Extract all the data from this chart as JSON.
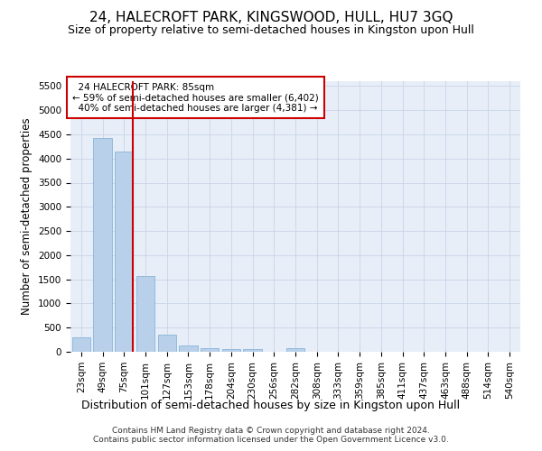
{
  "title": "24, HALECROFT PARK, KINGSWOOD, HULL, HU7 3GQ",
  "subtitle": "Size of property relative to semi-detached houses in Kingston upon Hull",
  "xlabel": "Distribution of semi-detached houses by size in Kingston upon Hull",
  "ylabel": "Number of semi-detached properties",
  "footer_line1": "Contains HM Land Registry data © Crown copyright and database right 2024.",
  "footer_line2": "Contains public sector information licensed under the Open Government Licence v3.0.",
  "categories": [
    "23sqm",
    "49sqm",
    "75sqm",
    "101sqm",
    "127sqm",
    "153sqm",
    "178sqm",
    "204sqm",
    "230sqm",
    "256sqm",
    "282sqm",
    "308sqm",
    "333sqm",
    "359sqm",
    "385sqm",
    "411sqm",
    "437sqm",
    "463sqm",
    "488sqm",
    "514sqm",
    "540sqm"
  ],
  "values": [
    300,
    4430,
    4150,
    1560,
    350,
    140,
    70,
    65,
    65,
    0,
    75,
    0,
    0,
    0,
    0,
    0,
    0,
    0,
    0,
    0,
    0
  ],
  "bar_color": "#b8d0ea",
  "bar_edge_color": "#7aadd4",
  "highlight_bar_index": 2,
  "highlight_color": "#cc0000",
  "ylim": [
    0,
    5600
  ],
  "yticks": [
    0,
    500,
    1000,
    1500,
    2000,
    2500,
    3000,
    3500,
    4000,
    4500,
    5000,
    5500
  ],
  "property_label": "24 HALECROFT PARK: 85sqm",
  "pct_smaller": 59,
  "count_smaller": "6,402",
  "pct_larger": 40,
  "count_larger": "4,381",
  "annotation_box_color": "#cc0000",
  "grid_color": "#c8d4e8",
  "bg_color": "#e8eef8",
  "title_fontsize": 11,
  "subtitle_fontsize": 9,
  "axis_label_fontsize": 8.5,
  "tick_fontsize": 7.5,
  "footer_fontsize": 6.5
}
